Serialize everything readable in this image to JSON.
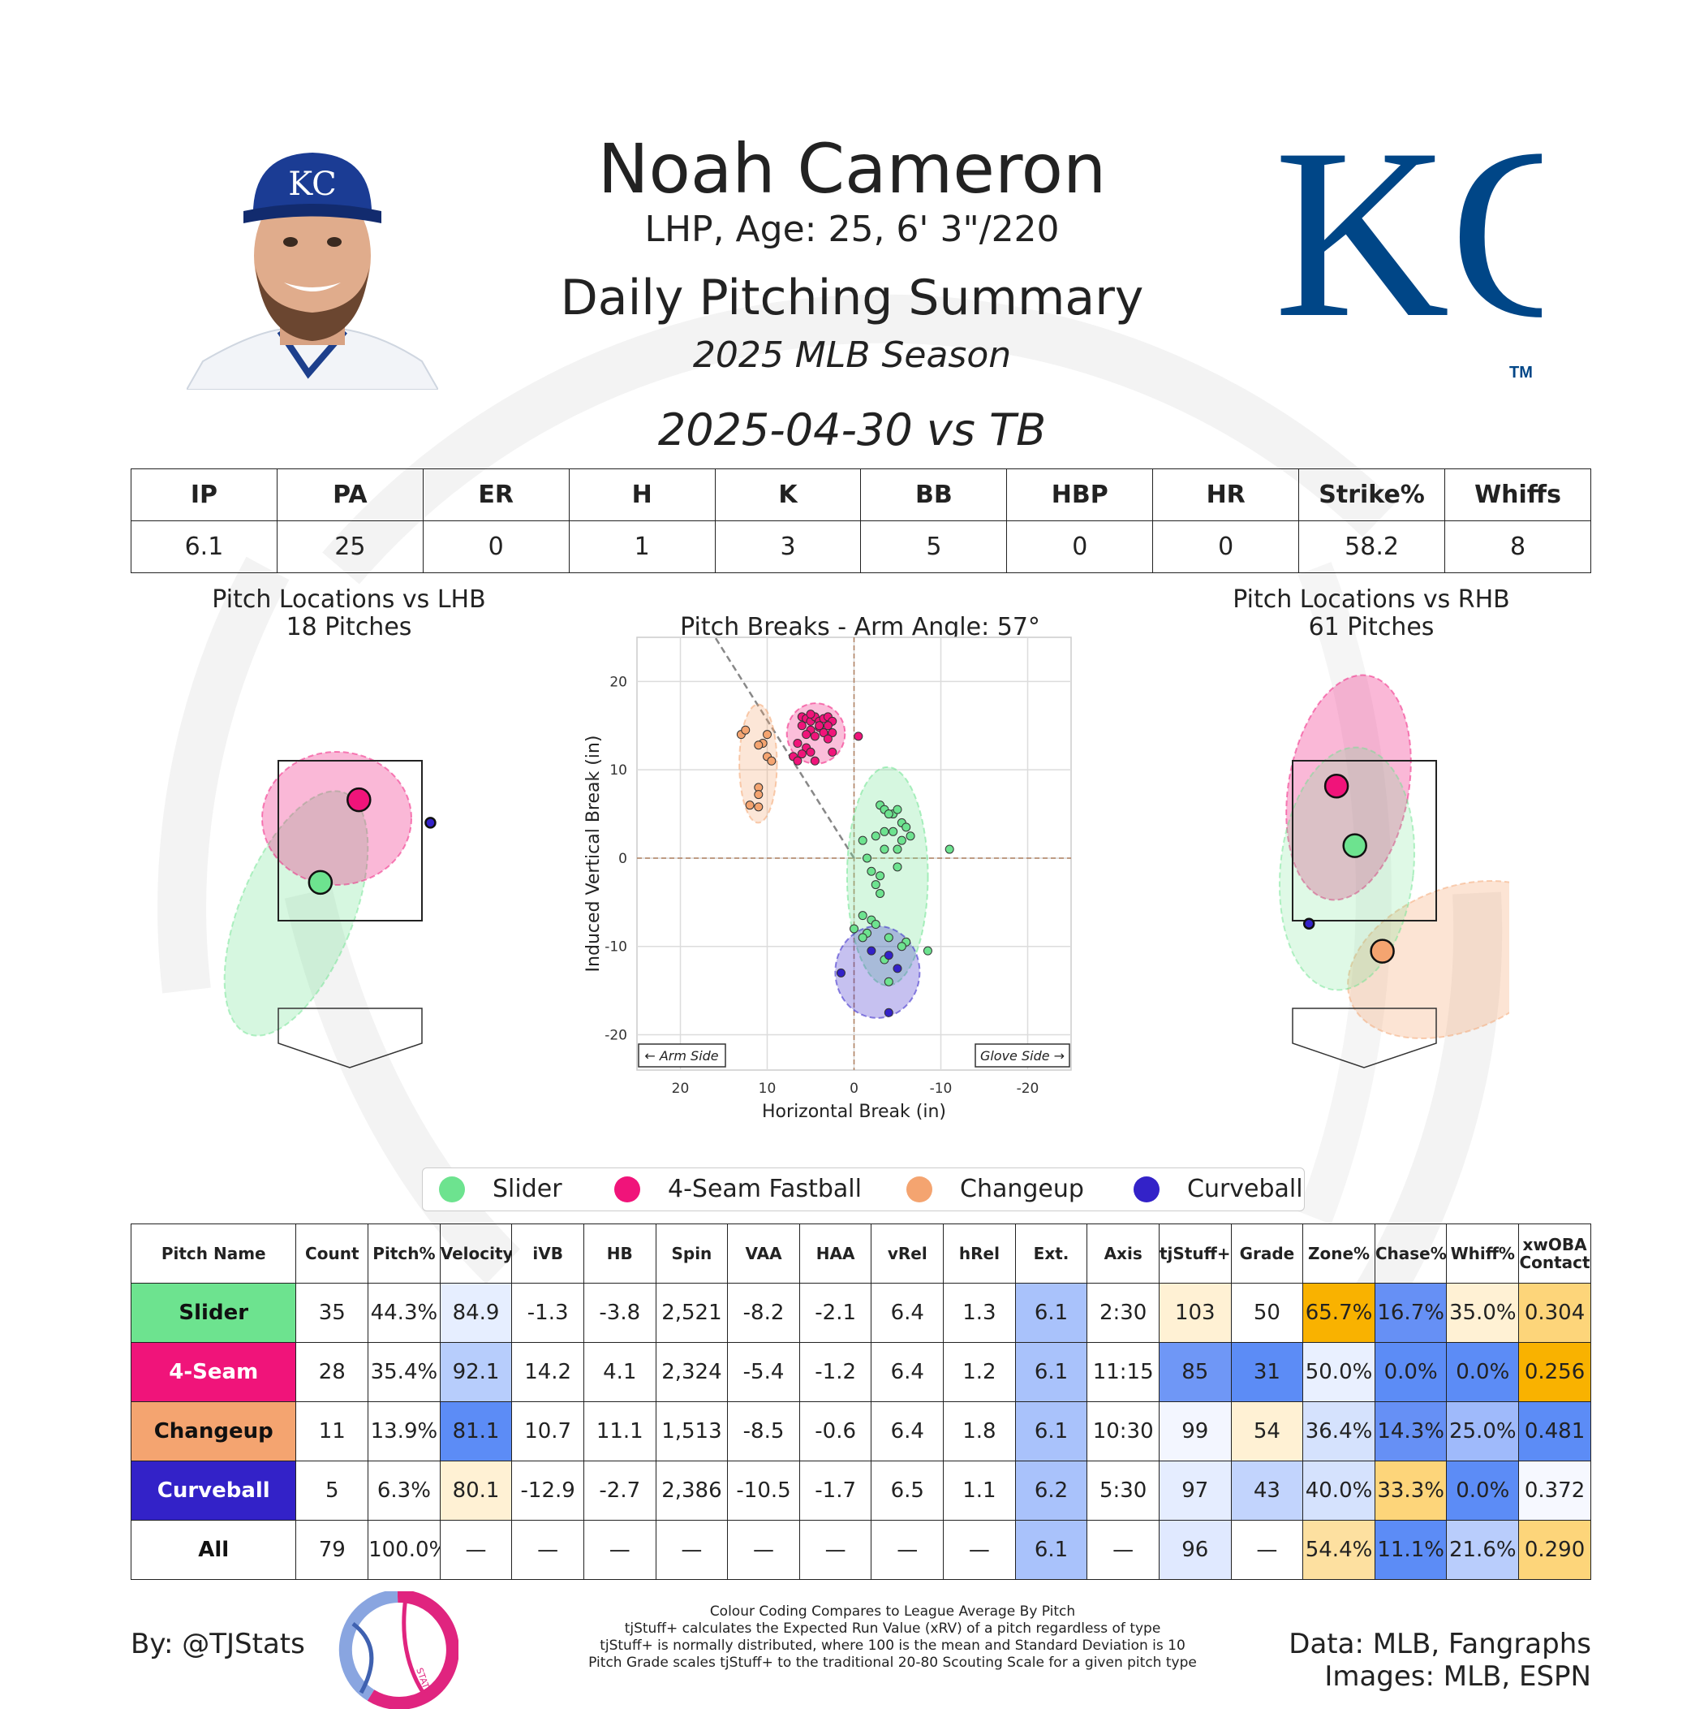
{
  "header": {
    "player_name": "Noah Cameron",
    "player_info": "LHP, Age: 25, 6' 3\"/220",
    "summary_title": "Daily Pitching Summary",
    "season": "2025 MLB Season",
    "game": "2025-04-30 vs TB",
    "cap_logo_text": "KC",
    "team_logo_text": "KC",
    "team_logo_tm": "TM"
  },
  "colors": {
    "slider": "#6de38f",
    "fastball": "#f0147a",
    "changeup": "#f4a470",
    "curveball": "#3322c8",
    "team_blue": "#004687",
    "high": "#f9b200",
    "low": "#5c8cf6"
  },
  "stat_line": {
    "headers": [
      "IP",
      "PA",
      "ER",
      "H",
      "K",
      "BB",
      "HBP",
      "HR",
      "Strike%",
      "Whiffs"
    ],
    "values": [
      "6.1",
      "25",
      "0",
      "1",
      "3",
      "5",
      "0",
      "0",
      "58.2",
      "8"
    ]
  },
  "chart_data": [
    {
      "type": "scatter",
      "title": "Pitch Locations vs LHB",
      "subtitle": "18 Pitches",
      "series": [
        {
          "name": "4-Seam Fastball",
          "mean": [
            0.1,
            2.95
          ]
        },
        {
          "name": "Slider",
          "mean": [
            -0.32,
            2.05
          ]
        },
        {
          "name": "Curveball",
          "mean": [
            0.88,
            2.7
          ]
        }
      ]
    },
    {
      "type": "scatter",
      "title": "Pitch Breaks - Arm Angle: 57°",
      "xlabel": "Horizontal Break (in)",
      "ylabel": "Induced Vertical Break (in)",
      "xlim": [
        25,
        -25
      ],
      "ylim": [
        -24,
        25
      ],
      "xticks": [
        20,
        10,
        0,
        -10,
        -20
      ],
      "yticks": [
        20,
        10,
        0,
        -10,
        -20
      ],
      "arm_side_label": "← Arm Side",
      "glove_side_label": "Glove Side →",
      "series": [
        {
          "name": "4-Seam Fastball",
          "points": [
            [
              6,
              16
            ],
            [
              5.5,
              15.8
            ],
            [
              5,
              15.5
            ],
            [
              4.5,
              16
            ],
            [
              4,
              15.5
            ],
            [
              3.5,
              15.8
            ],
            [
              3,
              16
            ],
            [
              2.5,
              15.5
            ],
            [
              6,
              15
            ],
            [
              5,
              14.5
            ],
            [
              4,
              14.8
            ],
            [
              3,
              15
            ],
            [
              2.5,
              14.2
            ],
            [
              5.5,
              14
            ],
            [
              4.5,
              13.8
            ],
            [
              3.5,
              14.2
            ],
            [
              3,
              13.5
            ],
            [
              6.5,
              13
            ],
            [
              5.5,
              12.5
            ],
            [
              5,
              12
            ],
            [
              6,
              11.8
            ],
            [
              7,
              11.5
            ],
            [
              4.5,
              11
            ],
            [
              6.5,
              11
            ],
            [
              2.5,
              12
            ],
            [
              4,
              15
            ],
            [
              5,
              16.3
            ],
            [
              -0.5,
              13.8
            ]
          ]
        },
        {
          "name": "Changeup",
          "points": [
            [
              13,
              14
            ],
            [
              12.5,
              14.5
            ],
            [
              10,
              14
            ],
            [
              10.5,
              13
            ],
            [
              11,
              12.8
            ],
            [
              10,
              11.5
            ],
            [
              9.5,
              11
            ],
            [
              11,
              8
            ],
            [
              11,
              7.2
            ],
            [
              12,
              6
            ],
            [
              11,
              5.8
            ]
          ]
        },
        {
          "name": "Slider",
          "points": [
            [
              -3,
              6
            ],
            [
              -3.5,
              5.5
            ],
            [
              -4.5,
              5
            ],
            [
              -5,
              5.5
            ],
            [
              -4,
              5
            ],
            [
              -5.5,
              4
            ],
            [
              -6,
              3.5
            ],
            [
              -2.5,
              2.5
            ],
            [
              -3.5,
              3
            ],
            [
              -4.5,
              3
            ],
            [
              -6.5,
              2.5
            ],
            [
              -5.5,
              2
            ],
            [
              -1,
              2
            ],
            [
              -3.5,
              1
            ],
            [
              -5,
              1
            ],
            [
              -11,
              1
            ],
            [
              -1.5,
              0
            ],
            [
              -5,
              -1
            ],
            [
              -2,
              -1.5
            ],
            [
              -3,
              -2
            ],
            [
              -2.5,
              -3
            ],
            [
              -3,
              -4
            ],
            [
              -1,
              -6.5
            ],
            [
              -2,
              -7
            ],
            [
              -2.5,
              -7.5
            ],
            [
              0,
              -8
            ],
            [
              -1.5,
              -8.5
            ],
            [
              -1,
              -9
            ],
            [
              -4,
              -9
            ],
            [
              -6,
              -9.5
            ],
            [
              -5.5,
              -10
            ],
            [
              -8.5,
              -10.5
            ],
            [
              -3.5,
              -11.5
            ],
            [
              -4,
              -14
            ]
          ]
        },
        {
          "name": "Curveball",
          "points": [
            [
              -2,
              -10.5
            ],
            [
              -4,
              -11
            ],
            [
              -5,
              -12.5
            ],
            [
              -4,
              -17.5
            ],
            [
              1.5,
              -13
            ]
          ]
        }
      ]
    },
    {
      "type": "scatter",
      "title": "Pitch Locations vs RHB",
      "subtitle": "61 Pitches",
      "series": [
        {
          "name": "4-Seam Fastball",
          "mean": [
            -0.3,
            3.1
          ]
        },
        {
          "name": "Slider",
          "mean": [
            -0.1,
            2.45
          ]
        },
        {
          "name": "Changeup",
          "mean": [
            0.2,
            1.3
          ]
        },
        {
          "name": "Curveball",
          "mean": [
            -0.6,
            1.6
          ]
        }
      ]
    }
  ],
  "legend": [
    "Slider",
    "4-Seam Fastball",
    "Changeup",
    "Curveball"
  ],
  "pitch_table": {
    "headers": [
      "Pitch Name",
      "Count",
      "Pitch%",
      "Velocity",
      "iVB",
      "HB",
      "Spin",
      "VAA",
      "HAA",
      "vRel",
      "hRel",
      "Ext.",
      "Axis",
      "tjStuff+",
      "Grade",
      "Zone%",
      "Chase%",
      "Whiff%",
      "xwOBA Contact"
    ],
    "rows": [
      {
        "name": "Slider",
        "values": [
          "35",
          "44.3%",
          "84.9",
          "-1.3",
          "-3.8",
          "2,521",
          "-8.2",
          "-2.1",
          "6.4",
          "1.3",
          "6.1",
          "2:30",
          "103",
          "50",
          "65.7%",
          "16.7%",
          "35.0%",
          "0.304"
        ]
      },
      {
        "name": "4-Seam",
        "values": [
          "28",
          "35.4%",
          "92.1",
          "14.2",
          "4.1",
          "2,324",
          "-5.4",
          "-1.2",
          "6.4",
          "1.2",
          "6.1",
          "11:15",
          "85",
          "31",
          "50.0%",
          "0.0%",
          "0.0%",
          "0.256"
        ]
      },
      {
        "name": "Changeup",
        "values": [
          "11",
          "13.9%",
          "81.1",
          "10.7",
          "11.1",
          "1,513",
          "-8.5",
          "-0.6",
          "6.4",
          "1.8",
          "6.1",
          "10:30",
          "99",
          "54",
          "36.4%",
          "14.3%",
          "25.0%",
          "0.481"
        ]
      },
      {
        "name": "Curveball",
        "values": [
          "5",
          "6.3%",
          "80.1",
          "-12.9",
          "-2.7",
          "2,386",
          "-10.5",
          "-1.7",
          "6.5",
          "1.1",
          "6.2",
          "5:30",
          "97",
          "43",
          "40.0%",
          "33.3%",
          "0.0%",
          "0.372"
        ]
      },
      {
        "name": "All",
        "values": [
          "79",
          "100.0%",
          "—",
          "—",
          "—",
          "—",
          "—",
          "—",
          "—",
          "—",
          "6.1",
          "—",
          "96",
          "—",
          "54.4%",
          "11.1%",
          "21.6%",
          "0.290"
        ]
      }
    ],
    "name_colors": [
      "#6de38f",
      "#f0147a",
      "#f4a470",
      "#3322c8",
      "#ffffff"
    ],
    "name_text_colors": [
      "#111111",
      "#ffffff",
      "#111111",
      "#ffffff",
      "#111111"
    ],
    "cell_colors": [
      [
        "",
        "",
        "#e6eeff",
        "",
        "",
        "",
        "",
        "",
        "",
        "",
        "#a9c2fb",
        "",
        "#fff1d4",
        "",
        "#f9b200",
        "#6690f5",
        "#fff1d4",
        "#fdd57a"
      ],
      [
        "",
        "",
        "#b7cdfc",
        "",
        "",
        "",
        "",
        "",
        "",
        "",
        "#a9c2fb",
        "",
        "#6f97f6",
        "#5c8cf6",
        "#e9f0ff",
        "#5c8cf6",
        "#5c8cf6",
        "#f9b200"
      ],
      [
        "",
        "",
        "#5c8cf6",
        "",
        "",
        "",
        "",
        "",
        "",
        "",
        "#a9c2fb",
        "",
        "#f3f6ff",
        "#fff1d4",
        "#d5e2fd",
        "#6690f5",
        "#9fbafb",
        "#5c8cf6"
      ],
      [
        "",
        "",
        "#fff1d4",
        "",
        "",
        "",
        "",
        "",
        "",
        "",
        "#a9c2fb",
        "",
        "#e5edff",
        "#c2d4fd",
        "#d5e2fd",
        "#fdd57a",
        "#5c8cf6",
        "#f6f8ff"
      ],
      [
        "",
        "",
        "",
        "",
        "",
        "",
        "",
        "",
        "",
        "",
        "#a9c2fb",
        "",
        "#e0e9ff",
        "",
        "#fde0a0",
        "#5c8cf6",
        "#b9cdfc",
        "#fdd57a"
      ]
    ]
  },
  "footer": {
    "byline": "By: @TJStats",
    "badge_text": "STATS",
    "notes": [
      "Colour Coding Compares to League Average By Pitch",
      "tjStuff+ calculates the Expected Run Value (xRV) of a pitch regardless of type",
      "tjStuff+ is normally distributed, where 100 is the mean and Standard Deviation is 10",
      "Pitch Grade scales tjStuff+ to the traditional 20-80 Scouting Scale for a given pitch type"
    ],
    "data_credit": "Data: MLB, Fangraphs",
    "images_credit": "Images: MLB, ESPN"
  }
}
